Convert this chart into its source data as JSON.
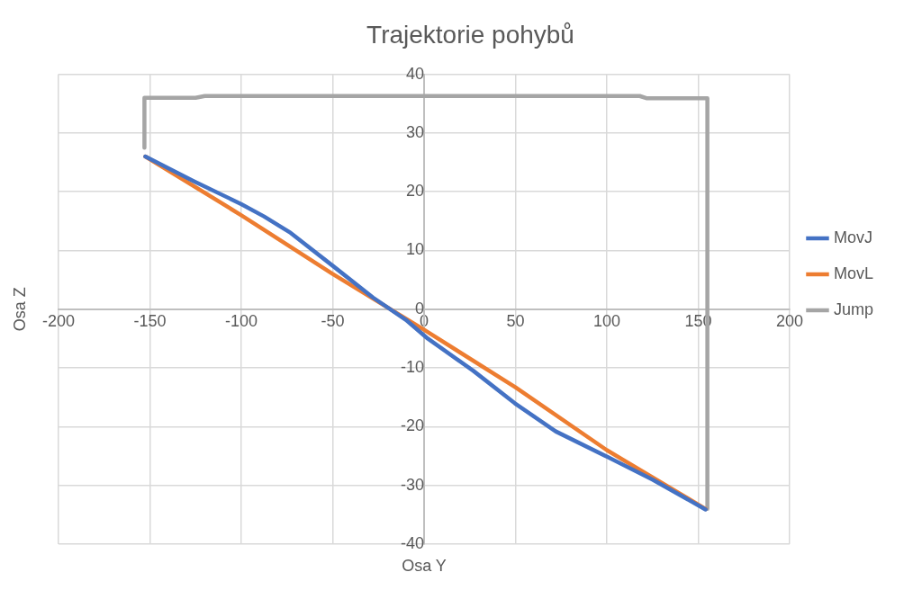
{
  "chart_data": {
    "type": "line",
    "title": "Trajektorie pohybů",
    "xlabel": "Osa Y",
    "ylabel": "Osa Z",
    "xlim": [
      -200,
      200
    ],
    "xticks": [
      -200,
      -150,
      -100,
      -50,
      0,
      50,
      100,
      150,
      200
    ],
    "ylim": [
      -40,
      40
    ],
    "yticks": [
      -40,
      -30,
      -20,
      -10,
      0,
      10,
      20,
      30,
      40
    ],
    "grid": true,
    "legend": "right",
    "marker": "none",
    "line_style": "solid",
    "series": [
      {
        "name": "MovJ",
        "color": "#4472c4",
        "x": [
          -152.5,
          -126,
          -100,
          -87.6,
          -73,
          -49.6,
          -28,
          -10,
          2,
          27,
          49.6,
          72,
          100.6,
          125,
          154
        ],
        "values": [
          26,
          21.8,
          17.9,
          15.8,
          13,
          7.3,
          2,
          -1.8,
          -5,
          -10.5,
          -16,
          -20.8,
          -25.2,
          -29,
          -34.1
        ]
      },
      {
        "name": "MovL",
        "color": "#ed7d31",
        "x": [
          -152.5,
          -100,
          -50,
          0,
          50,
          100,
          154
        ],
        "values": [
          26,
          16,
          6,
          -3.5,
          -13.3,
          -24,
          -34
        ]
      },
      {
        "name": "Jump",
        "color": "#a5a5a5",
        "x": [
          -153,
          -153,
          -125,
          -120,
          118,
          122,
          155,
          155
        ],
        "values": [
          27.5,
          36,
          36,
          36.3,
          36.3,
          35.9,
          35.9,
          -34
        ]
      }
    ]
  }
}
